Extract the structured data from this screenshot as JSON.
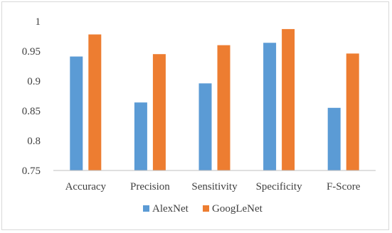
{
  "chart_data": {
    "type": "bar",
    "categories": [
      "Accuracy",
      "Precision",
      "Sensitivity",
      "Specificity",
      "F-Score"
    ],
    "series": [
      {
        "name": "AlexNet",
        "color": "#5B9BD5",
        "values": [
          0.941,
          0.864,
          0.896,
          0.964,
          0.855
        ]
      },
      {
        "name": "GoogLeNet",
        "color": "#ED7D31",
        "values": [
          0.978,
          0.945,
          0.96,
          0.987,
          0.946
        ]
      }
    ],
    "ylim": [
      0.75,
      1.0
    ],
    "yticks": [
      "0.75",
      "0.8",
      "0.85",
      "0.9",
      "0.95",
      "1"
    ],
    "ytick_values": [
      0.75,
      0.8,
      0.85,
      0.9,
      0.95,
      1.0
    ],
    "grid": false,
    "legend_position": "bottom"
  }
}
